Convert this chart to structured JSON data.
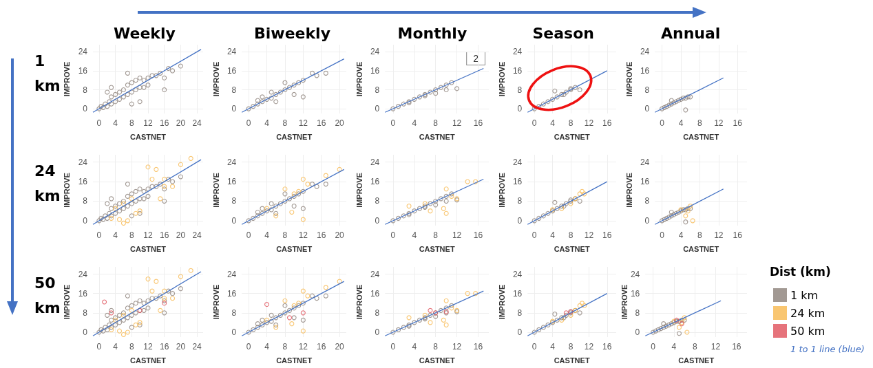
{
  "chart_data": [
    {
      "type": "scatter",
      "title": "Weekly",
      "annotations": [
        "1 km"
      ],
      "xlabel": "CASTNET",
      "ylabel": "IMPROVE",
      "xlim": [
        -1.5,
        25.5
      ],
      "xticks": [
        0,
        4,
        8,
        12,
        16,
        20,
        24
      ],
      "ylim": [
        -2,
        27
      ],
      "yticks": [
        0,
        8,
        16,
        24
      ],
      "grid": true,
      "marker": "circle",
      "series": [
        {
          "color": "#8b8078",
          "x": [
            0,
            0.5,
            1,
            1.5,
            2,
            2.5,
            3,
            3,
            4,
            4,
            5,
            5,
            6,
            6,
            7,
            7,
            8,
            8,
            9,
            9,
            10,
            10,
            11,
            11,
            12,
            12,
            13,
            14,
            15,
            16,
            17,
            18,
            20,
            2,
            3,
            7,
            16,
            10,
            8
          ],
          "values": [
            0,
            1,
            0.5,
            2,
            1,
            3,
            2,
            5,
            3,
            6,
            4,
            7,
            5,
            8,
            6,
            10,
            7,
            11,
            8,
            12,
            9,
            13,
            9,
            12,
            10,
            13,
            14,
            14,
            15,
            13,
            17,
            16,
            18,
            7,
            9,
            15,
            8,
            3,
            2
          ]
        },
        {
          "type": "line",
          "color": "#4472c4",
          "marker": "none",
          "x": [
            -1.5,
            25
          ],
          "values": [
            -1.5,
            25
          ]
        }
      ]
    },
    {
      "type": "scatter",
      "title": "Biweekly",
      "xlabel": "CASTNET",
      "ylabel": "IMPROVE",
      "xlim": [
        -1.5,
        21.5
      ],
      "xticks": [
        0,
        4,
        8,
        12,
        16,
        20
      ],
      "ylim": [
        -2,
        27
      ],
      "yticks": [
        0,
        8,
        16,
        24
      ],
      "grid": true,
      "marker": "circle",
      "series": [
        {
          "color": "#8b8078",
          "x": [
            0,
            1,
            2,
            3,
            4,
            5,
            6,
            7,
            8,
            9,
            10,
            11,
            12,
            14,
            15,
            17,
            3,
            5,
            8,
            10,
            12,
            2,
            6
          ],
          "values": [
            0,
            1,
            2,
            3,
            4,
            4.5,
            6,
            7,
            8,
            9,
            10,
            11,
            12,
            15,
            14,
            15,
            5,
            7,
            11,
            6,
            5,
            3.5,
            3
          ]
        },
        {
          "type": "line",
          "color": "#4472c4",
          "marker": "none",
          "x": [
            -1.5,
            21
          ],
          "values": [
            -1.5,
            21
          ]
        }
      ]
    },
    {
      "type": "scatter",
      "title": "Monthly",
      "annotations": [
        "2"
      ],
      "xlabel": "CASTNET",
      "ylabel": "IMPROVE",
      "xlim": [
        -1.5,
        18
      ],
      "xticks": [
        0,
        4,
        8,
        12,
        16
      ],
      "ylim": [
        -2,
        27
      ],
      "yticks": [
        0,
        8,
        16,
        24
      ],
      "grid": true,
      "marker": "circle",
      "series": [
        {
          "color": "#8b8078",
          "x": [
            0,
            1,
            2,
            3,
            4,
            5,
            6,
            7,
            8,
            9,
            10,
            11,
            12,
            3,
            6,
            8,
            10
          ],
          "values": [
            0,
            1,
            2,
            2.5,
            4,
            5,
            6,
            7,
            8,
            9,
            10,
            11,
            8.5,
            3,
            5.5,
            6.5,
            8
          ]
        },
        {
          "type": "line",
          "color": "#4472c4",
          "marker": "none",
          "x": [
            -1.5,
            17
          ],
          "values": [
            -1.5,
            17
          ]
        }
      ]
    },
    {
      "type": "scatter",
      "title": "Season",
      "xlabel": "CASTNET",
      "ylabel": "IMPROVE",
      "xlim": [
        -1.5,
        18
      ],
      "xticks": [
        0,
        4,
        8,
        12,
        16
      ],
      "ylim": [
        -2,
        27
      ],
      "yticks": [
        0,
        8,
        16,
        24
      ],
      "grid": true,
      "marker": "circle",
      "series": [
        {
          "color": "#8b8078",
          "x": [
            0,
            1,
            2,
            3,
            4,
            5,
            6,
            7,
            8,
            9,
            10,
            4.5,
            6.5,
            8
          ],
          "values": [
            0,
            1,
            2,
            3,
            4,
            5,
            6,
            7,
            8,
            9,
            8,
            7.5,
            6,
            8.5
          ]
        },
        {
          "type": "line",
          "color": "#4472c4",
          "marker": "none",
          "x": [
            -1.5,
            16
          ],
          "values": [
            -1.5,
            16
          ]
        }
      ]
    },
    {
      "type": "scatter",
      "title": "Annual",
      "xlabel": "CASTNET",
      "ylabel": "IMPROVE",
      "xlim": [
        -1.5,
        18
      ],
      "xticks": [
        0,
        4,
        8,
        12,
        16
      ],
      "ylim": [
        -2,
        27
      ],
      "yticks": [
        0,
        8,
        16,
        24
      ],
      "grid": true,
      "marker": "circle",
      "series": [
        {
          "color": "#8b8078",
          "x": [
            0,
            0.5,
            1,
            1.5,
            2,
            2.5,
            3,
            3.5,
            4,
            4.5,
            5,
            5.5,
            6,
            2,
            5
          ],
          "values": [
            0,
            0.5,
            1,
            1.5,
            2,
            2.5,
            3,
            3.5,
            4,
            4.5,
            4.5,
            5,
            5,
            3.5,
            -0.5
          ]
        },
        {
          "type": "line",
          "color": "#4472c4",
          "marker": "none",
          "x": [
            -1.5,
            13
          ],
          "values": [
            -1.5,
            13
          ]
        }
      ]
    },
    {
      "type": "scatter",
      "annotations": [
        "24 km"
      ],
      "xlabel": "CASTNET",
      "ylabel": "IMPROVE",
      "xlim": [
        -1.5,
        25.5
      ],
      "xticks": [
        0,
        4,
        8,
        12,
        16,
        20,
        24
      ],
      "ylim": [
        -2,
        27
      ],
      "yticks": [
        0,
        8,
        16,
        24
      ],
      "grid": true,
      "marker": "circle",
      "series": [
        {
          "color": "#8b8078",
          "x": [
            0,
            0.5,
            1,
            1.5,
            2,
            2.5,
            3,
            3,
            4,
            4,
            5,
            5,
            6,
            6,
            7,
            7,
            8,
            8,
            9,
            9,
            10,
            10,
            11,
            11,
            12,
            12,
            13,
            14,
            15,
            16,
            17,
            18,
            20,
            2,
            3,
            7,
            16,
            10,
            8
          ],
          "values": [
            0,
            1,
            0.5,
            2,
            1,
            3,
            2,
            5,
            3,
            6,
            4,
            7,
            5,
            8,
            6,
            10,
            7,
            11,
            8,
            12,
            9,
            13,
            9,
            12,
            10,
            13,
            14,
            14,
            15,
            13,
            17,
            16,
            18,
            7,
            9,
            15,
            8,
            3,
            2
          ]
        },
        {
          "color": "#f7b84e",
          "x": [
            12,
            14,
            16,
            20,
            22.5,
            15,
            18,
            6,
            7,
            9,
            3,
            10,
            13,
            16,
            5,
            4,
            6,
            8
          ],
          "values": [
            22,
            21,
            17,
            23,
            25.5,
            9,
            14,
            -1,
            0,
            3,
            1,
            4,
            17,
            14,
            0.5,
            5,
            7,
            9
          ]
        },
        {
          "type": "line",
          "color": "#4472c4",
          "marker": "none",
          "x": [
            -1.5,
            25
          ],
          "values": [
            -1.5,
            25
          ]
        }
      ]
    },
    {
      "type": "scatter",
      "xlabel": "CASTNET",
      "ylabel": "IMPROVE",
      "xlim": [
        -1.5,
        21.5
      ],
      "xticks": [
        0,
        4,
        8,
        12,
        16,
        20
      ],
      "ylim": [
        -2,
        27
      ],
      "yticks": [
        0,
        8,
        16,
        24
      ],
      "grid": true,
      "marker": "circle",
      "series": [
        {
          "color": "#8b8078",
          "x": [
            0,
            1,
            2,
            3,
            4,
            5,
            6,
            7,
            8,
            9,
            10,
            11,
            12,
            14,
            15,
            17,
            3,
            5,
            8,
            10,
            12,
            2,
            6
          ],
          "values": [
            0,
            1,
            2,
            3,
            4,
            4.5,
            6,
            7,
            8,
            9,
            10,
            11,
            12,
            15,
            14,
            15,
            5,
            7,
            11,
            6,
            5,
            3.5,
            3
          ]
        },
        {
          "color": "#f7b84e",
          "x": [
            20,
            17,
            12,
            13,
            11,
            8,
            12,
            9.5,
            6,
            10,
            4
          ],
          "values": [
            21,
            18.5,
            17,
            15,
            12,
            13,
            0.5,
            3.5,
            2,
            11,
            5
          ]
        },
        {
          "type": "line",
          "color": "#4472c4",
          "marker": "none",
          "x": [
            -1.5,
            21
          ],
          "values": [
            -1.5,
            21
          ]
        }
      ]
    },
    {
      "type": "scatter",
      "xlabel": "CASTNET",
      "ylabel": "IMPROVE",
      "xlim": [
        -1.5,
        18
      ],
      "xticks": [
        0,
        4,
        8,
        12,
        16
      ],
      "ylim": [
        -2,
        27
      ],
      "yticks": [
        0,
        8,
        16,
        24
      ],
      "grid": true,
      "marker": "circle",
      "series": [
        {
          "color": "#8b8078",
          "x": [
            0,
            1,
            2,
            3,
            4,
            5,
            6,
            7,
            8,
            9,
            10,
            11,
            12,
            3,
            6,
            8,
            10
          ],
          "values": [
            0,
            1,
            2,
            2.5,
            4,
            5,
            6,
            7,
            8,
            9,
            10,
            11,
            8.5,
            3,
            5.5,
            6.5,
            8
          ]
        },
        {
          "color": "#f7b84e",
          "x": [
            14,
            15.5,
            12,
            10,
            9.5,
            10,
            6,
            3,
            11,
            7
          ],
          "values": [
            16,
            16,
            9,
            3,
            5,
            13,
            7,
            6,
            10,
            4
          ]
        },
        {
          "type": "line",
          "color": "#4472c4",
          "marker": "none",
          "x": [
            -1.5,
            17
          ],
          "values": [
            -1.5,
            17
          ]
        }
      ]
    },
    {
      "type": "scatter",
      "xlabel": "CASTNET",
      "ylabel": "IMPROVE",
      "xlim": [
        -1.5,
        18
      ],
      "xticks": [
        0,
        4,
        8,
        12,
        16
      ],
      "ylim": [
        -2,
        27
      ],
      "yticks": [
        0,
        8,
        16,
        24
      ],
      "grid": true,
      "marker": "circle",
      "series": [
        {
          "color": "#8b8078",
          "x": [
            0,
            1,
            2,
            3,
            4,
            5,
            6,
            7,
            8,
            9,
            10,
            4.5,
            6.5,
            8
          ],
          "values": [
            0,
            1,
            2,
            3,
            4,
            5,
            6,
            7,
            8,
            9,
            8,
            7.5,
            6,
            8.5
          ]
        },
        {
          "color": "#f7b84e",
          "x": [
            10,
            10.5,
            11,
            8,
            6,
            4,
            9
          ],
          "values": [
            11,
            12,
            11,
            7,
            5,
            4.5,
            9
          ]
        },
        {
          "type": "line",
          "color": "#4472c4",
          "marker": "none",
          "x": [
            -1.5,
            16
          ],
          "values": [
            -1.5,
            16
          ]
        }
      ]
    },
    {
      "type": "scatter",
      "xlabel": "CASTNET",
      "ylabel": "IMPROVE",
      "xlim": [
        -1.5,
        18
      ],
      "xticks": [
        0,
        4,
        8,
        12,
        16
      ],
      "ylim": [
        -2,
        27
      ],
      "yticks": [
        0,
        8,
        16,
        24
      ],
      "grid": true,
      "marker": "circle",
      "series": [
        {
          "color": "#8b8078",
          "x": [
            0,
            0.5,
            1,
            1.5,
            2,
            2.5,
            3,
            3.5,
            4,
            4.5,
            5,
            5.5,
            6,
            2,
            5
          ],
          "values": [
            0,
            0.5,
            1,
            1.5,
            2,
            2.5,
            3,
            3.5,
            4,
            4.5,
            4.5,
            5,
            5,
            3.5,
            -0.5
          ]
        },
        {
          "color": "#f7b84e",
          "x": [
            6,
            6.5,
            5,
            5.5,
            4
          ],
          "values": [
            6,
            0,
            2,
            4,
            4.5
          ]
        },
        {
          "type": "line",
          "color": "#4472c4",
          "marker": "none",
          "x": [
            -1.5,
            13
          ],
          "values": [
            -1.5,
            13
          ]
        }
      ]
    },
    {
      "type": "scatter",
      "annotations": [
        "50 km"
      ],
      "xlabel": "CASTNET",
      "ylabel": "IMPROVE",
      "xlim": [
        -1.5,
        25.5
      ],
      "xticks": [
        0,
        4,
        8,
        12,
        16,
        20,
        24
      ],
      "ylim": [
        -2,
        27
      ],
      "yticks": [
        0,
        8,
        16,
        24
      ],
      "grid": true,
      "marker": "circle",
      "series": [
        {
          "color": "#8b8078",
          "x": [
            0,
            0.5,
            1,
            1.5,
            2,
            2.5,
            3,
            3,
            4,
            4,
            5,
            5,
            6,
            6,
            7,
            7,
            8,
            8,
            9,
            9,
            10,
            10,
            11,
            11,
            12,
            12,
            13,
            14,
            15,
            16,
            17,
            18,
            20,
            2,
            3,
            7,
            16,
            10,
            8
          ],
          "values": [
            0,
            1,
            0.5,
            2,
            1,
            3,
            2,
            5,
            3,
            6,
            4,
            7,
            5,
            8,
            6,
            10,
            7,
            11,
            8,
            12,
            9,
            13,
            9,
            12,
            10,
            13,
            14,
            14,
            15,
            13,
            17,
            16,
            18,
            7,
            9,
            15,
            8,
            3,
            2
          ]
        },
        {
          "color": "#f7b84e",
          "x": [
            12,
            14,
            16,
            20,
            22.5,
            15,
            18,
            6,
            7,
            9,
            3,
            10,
            13,
            16,
            5,
            4,
            6,
            8
          ],
          "values": [
            22,
            21,
            17,
            23,
            25.5,
            9,
            14,
            -1,
            0,
            3,
            1,
            4,
            17,
            14,
            0.5,
            5,
            7,
            9
          ]
        },
        {
          "color": "#e0505a",
          "x": [
            1.3,
            3,
            16,
            10
          ],
          "values": [
            12.5,
            8,
            12,
            9
          ]
        },
        {
          "type": "line",
          "color": "#4472c4",
          "marker": "none",
          "x": [
            -1.5,
            25
          ],
          "values": [
            -1.5,
            25
          ]
        }
      ]
    },
    {
      "type": "scatter",
      "xlabel": "CASTNET",
      "ylabel": "IMPROVE",
      "xlim": [
        -1.5,
        21.5
      ],
      "xticks": [
        0,
        4,
        8,
        12,
        16,
        20
      ],
      "ylim": [
        -2,
        27
      ],
      "yticks": [
        0,
        8,
        16,
        24
      ],
      "grid": true,
      "marker": "circle",
      "series": [
        {
          "color": "#8b8078",
          "x": [
            0,
            1,
            2,
            3,
            4,
            5,
            6,
            7,
            8,
            9,
            10,
            11,
            12,
            14,
            15,
            17,
            3,
            5,
            8,
            10,
            12,
            2,
            6
          ],
          "values": [
            0,
            1,
            2,
            3,
            4,
            4.5,
            6,
            7,
            8,
            9,
            10,
            11,
            12,
            15,
            14,
            15,
            5,
            7,
            11,
            6,
            5,
            3.5,
            3
          ]
        },
        {
          "color": "#f7b84e",
          "x": [
            20,
            17,
            12,
            13,
            11,
            8,
            12,
            9.5,
            6,
            10,
            4
          ],
          "values": [
            21,
            18.5,
            17,
            15,
            12,
            13,
            0.5,
            3.5,
            2,
            11,
            5
          ]
        },
        {
          "color": "#e0505a",
          "x": [
            4,
            12,
            9
          ],
          "values": [
            11.5,
            8,
            6
          ]
        },
        {
          "type": "line",
          "color": "#4472c4",
          "marker": "none",
          "x": [
            -1.5,
            21
          ],
          "values": [
            -1.5,
            21
          ]
        }
      ]
    },
    {
      "type": "scatter",
      "xlabel": "CASTNET",
      "ylabel": "IMPROVE",
      "xlim": [
        -1.5,
        18
      ],
      "xticks": [
        0,
        4,
        8,
        12,
        16
      ],
      "ylim": [
        -2,
        27
      ],
      "yticks": [
        0,
        8,
        16,
        24
      ],
      "grid": true,
      "marker": "circle",
      "series": [
        {
          "color": "#8b8078",
          "x": [
            0,
            1,
            2,
            3,
            4,
            5,
            6,
            7,
            8,
            9,
            10,
            11,
            12,
            3,
            6,
            8,
            10
          ],
          "values": [
            0,
            1,
            2,
            2.5,
            4,
            5,
            6,
            7,
            8,
            9,
            10,
            11,
            8.5,
            3,
            5.5,
            6.5,
            8
          ]
        },
        {
          "color": "#f7b84e",
          "x": [
            14,
            15.5,
            12,
            10,
            9.5,
            10,
            6,
            3,
            11,
            7
          ],
          "values": [
            16,
            16,
            9,
            3,
            5,
            13,
            7,
            6,
            10,
            4
          ]
        },
        {
          "color": "#e0505a",
          "x": [
            7,
            8,
            10
          ],
          "values": [
            9,
            8,
            8.5
          ]
        },
        {
          "type": "line",
          "color": "#4472c4",
          "marker": "none",
          "x": [
            -1.5,
            17
          ],
          "values": [
            -1.5,
            17
          ]
        }
      ]
    },
    {
      "type": "scatter",
      "xlabel": "CASTNET",
      "ylabel": "IMPROVE",
      "xlim": [
        -1.5,
        18
      ],
      "xticks": [
        0,
        4,
        8,
        12,
        16
      ],
      "ylim": [
        -2,
        27
      ],
      "yticks": [
        0,
        8,
        16,
        24
      ],
      "grid": true,
      "marker": "circle",
      "series": [
        {
          "color": "#8b8078",
          "x": [
            0,
            1,
            2,
            3,
            4,
            5,
            6,
            7,
            8,
            9,
            10,
            4.5,
            6.5,
            8
          ],
          "values": [
            0,
            1,
            2,
            3,
            4,
            5,
            6,
            7,
            8,
            9,
            8,
            7.5,
            6,
            8.5
          ]
        },
        {
          "color": "#f7b84e",
          "x": [
            10,
            10.5,
            11,
            8,
            6,
            4,
            9
          ],
          "values": [
            11,
            12,
            11,
            7,
            5,
            4.5,
            9
          ]
        },
        {
          "color": "#e0505a",
          "x": [
            7,
            8
          ],
          "values": [
            8,
            8.5
          ]
        },
        {
          "type": "line",
          "color": "#4472c4",
          "marker": "none",
          "x": [
            -1.5,
            16
          ],
          "values": [
            -1.5,
            16
          ]
        }
      ]
    },
    {
      "type": "scatter",
      "xlabel": "CASTNET",
      "ylabel": "IMPROVE",
      "legend": "right",
      "legend_title": "Dist (km)",
      "xlim": [
        -1.5,
        18
      ],
      "xticks": [
        0,
        4,
        8,
        12,
        16
      ],
      "ylim": [
        -2,
        27
      ],
      "yticks": [
        0,
        8,
        16,
        24
      ],
      "grid": true,
      "marker": "circle",
      "series": [
        {
          "name": "1 km",
          "color": "#8b8078",
          "x": [
            0,
            0.5,
            1,
            1.5,
            2,
            2.5,
            3,
            3.5,
            4,
            4.5,
            5,
            5.5,
            6,
            2,
            5
          ],
          "values": [
            0,
            0.5,
            1,
            1.5,
            2,
            2.5,
            3,
            3.5,
            4,
            4.5,
            4.5,
            5,
            5,
            3.5,
            -0.5
          ]
        },
        {
          "name": "24 km",
          "color": "#f7b84e",
          "x": [
            6,
            6.5,
            5,
            5.5,
            4
          ],
          "values": [
            6,
            0,
            2,
            4,
            4.5
          ]
        },
        {
          "name": "50 km",
          "color": "#e0505a",
          "x": [
            4.5,
            5.5
          ],
          "values": [
            5,
            3.5
          ]
        },
        {
          "name": "1 to 1 line (blue)",
          "type": "line",
          "color": "#4472c4",
          "marker": "none",
          "x": [
            -1.5,
            13
          ],
          "values": [
            -1.5,
            13
          ]
        }
      ]
    }
  ]
}
